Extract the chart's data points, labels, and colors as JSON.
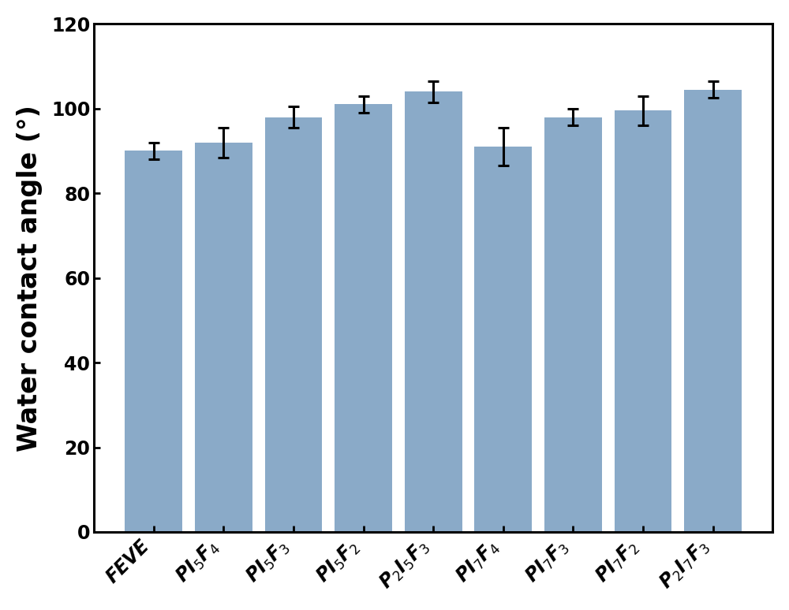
{
  "categories": [
    "FEVE",
    "PI$_5$F$_4$",
    "PI$_5$F$_3$",
    "PI$_5$F$_2$",
    "P$_2$I$_5$F$_3$",
    "PI$_7$F$_4$",
    "PI$_7$F$_3$",
    "PI$_7$F$_2$",
    "P$_2$I$_7$F$_3$"
  ],
  "values": [
    90,
    92,
    98,
    101,
    104,
    91,
    98,
    99.5,
    104.5
  ],
  "errors": [
    2.0,
    3.5,
    2.5,
    2.0,
    2.5,
    4.5,
    2.0,
    3.5,
    2.0
  ],
  "bar_color": "#8AAAC8",
  "ylabel": "Water contact angle (°)",
  "ylim": [
    0,
    120
  ],
  "yticks": [
    0,
    20,
    40,
    60,
    80,
    100,
    120
  ],
  "bar_width": 0.82,
  "figsize": [
    10.0,
    7.74
  ],
  "dpi": 100,
  "tick_label_fontsize": 17,
  "ylabel_fontsize": 24,
  "xlabel_rotation": 45
}
